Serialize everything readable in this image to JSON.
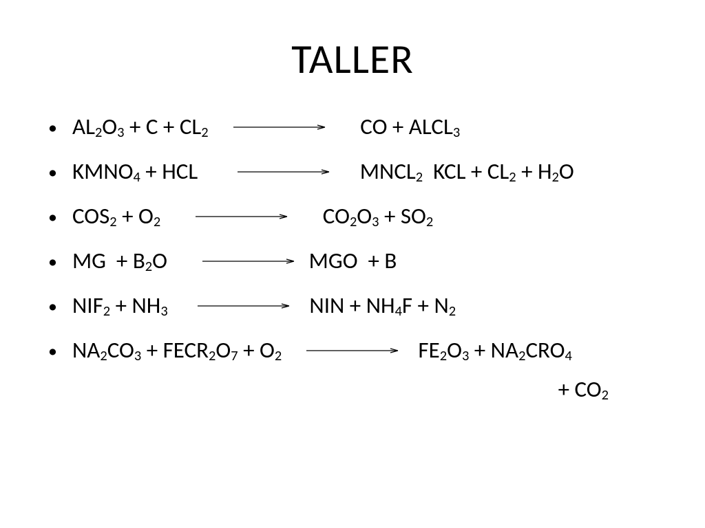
{
  "title": "TALLER",
  "arrow_style": {
    "stroke": "#000000",
    "stroke_width": 1.2,
    "head_len": 11,
    "head_w": 6
  },
  "equations": [
    {
      "lhs_segments": [
        {
          "t": "A",
          "s": false
        },
        {
          "t": "L",
          "s": false
        },
        {
          "t": "2",
          "s": true
        },
        {
          "t": "O",
          "s": false
        },
        {
          "t": "3",
          "s": true
        },
        {
          "t": " + C + C",
          "s": false
        },
        {
          "t": "L",
          "s": false
        },
        {
          "t": "2",
          "s": true
        },
        {
          "t": "    ",
          "s": false
        }
      ],
      "arrow_len": 134,
      "rhs_segments": [
        {
          "t": "      CO + A",
          "s": false
        },
        {
          "t": "L",
          "s": false
        },
        {
          "t": "C",
          "s": false
        },
        {
          "t": "L",
          "s": false
        },
        {
          "t": "3",
          "s": true
        }
      ]
    },
    {
      "lhs_segments": [
        {
          "t": "KM",
          "s": false
        },
        {
          "t": "N",
          "s": false
        },
        {
          "t": "O",
          "s": false
        },
        {
          "t": "4",
          "s": true
        },
        {
          "t": " + HC",
          "s": false
        },
        {
          "t": "L",
          "s": false
        },
        {
          "t": "       ",
          "s": false
        }
      ],
      "arrow_len": 134,
      "rhs_segments": [
        {
          "t": "     M",
          "s": false
        },
        {
          "t": "N",
          "s": false
        },
        {
          "t": "C",
          "s": false
        },
        {
          "t": "L",
          "s": false
        },
        {
          "t": "2",
          "s": true
        },
        {
          "t": "  KC",
          "s": false
        },
        {
          "t": "L",
          "s": false
        },
        {
          "t": " + C",
          "s": false
        },
        {
          "t": "L",
          "s": false
        },
        {
          "t": "2",
          "s": true
        },
        {
          "t": " + H",
          "s": false
        },
        {
          "t": "2",
          "s": true
        },
        {
          "t": "O",
          "s": false
        }
      ]
    },
    {
      "lhs_segments": [
        {
          "t": "C",
          "s": false
        },
        {
          "t": "O",
          "s": false
        },
        {
          "t": "S",
          "s": false
        },
        {
          "t": "2",
          "s": true
        },
        {
          "t": " + O",
          "s": false
        },
        {
          "t": "2",
          "s": true
        },
        {
          "t": "      ",
          "s": false
        }
      ],
      "arrow_len": 134,
      "rhs_segments": [
        {
          "t": "      C",
          "s": false
        },
        {
          "t": "O",
          "s": false
        },
        {
          "t": "2",
          "s": true
        },
        {
          "t": "O",
          "s": false
        },
        {
          "t": "3",
          "s": true
        },
        {
          "t": " + SO",
          "s": false
        },
        {
          "t": "2",
          "s": true
        }
      ]
    },
    {
      "lhs_segments": [
        {
          "t": "M",
          "s": false
        },
        {
          "t": "G",
          "s": false
        },
        {
          "t": "  + B",
          "s": false
        },
        {
          "t": "2",
          "s": true
        },
        {
          "t": "O      ",
          "s": false
        }
      ],
      "arrow_len": 134,
      "rhs_segments": [
        {
          "t": "  M",
          "s": false
        },
        {
          "t": "G",
          "s": false
        },
        {
          "t": "O  + B",
          "s": false
        }
      ]
    },
    {
      "lhs_segments": [
        {
          "t": "N",
          "s": false
        },
        {
          "t": "I",
          "s": false
        },
        {
          "t": "F",
          "s": false
        },
        {
          "t": "2",
          "s": true
        },
        {
          "t": " + NH",
          "s": false
        },
        {
          "t": "3",
          "s": true
        },
        {
          "t": "     ",
          "s": false
        }
      ],
      "arrow_len": 134,
      "rhs_segments": [
        {
          "t": "   N",
          "s": false
        },
        {
          "t": "I",
          "s": false
        },
        {
          "t": "N + NH",
          "s": false
        },
        {
          "t": "4",
          "s": true
        },
        {
          "t": "F + N",
          "s": false
        },
        {
          "t": "2",
          "s": true
        }
      ]
    },
    {
      "lhs_segments": [
        {
          "t": "N",
          "s": false
        },
        {
          "t": "A",
          "s": false
        },
        {
          "t": "2",
          "s": true
        },
        {
          "t": "CO",
          "s": false
        },
        {
          "t": "3",
          "s": true
        },
        {
          "t": " + F",
          "s": false
        },
        {
          "t": "E",
          "s": false
        },
        {
          "t": "C",
          "s": false
        },
        {
          "t": "R",
          "s": false
        },
        {
          "t": "2",
          "s": true
        },
        {
          "t": "O",
          "s": false
        },
        {
          "t": "7",
          "s": true
        },
        {
          "t": " + O",
          "s": false
        },
        {
          "t": "2",
          "s": true
        },
        {
          "t": "    ",
          "s": false
        }
      ],
      "arrow_len": 134,
      "rhs_segments": [
        {
          "t": "   F",
          "s": false
        },
        {
          "t": "E",
          "s": false
        },
        {
          "t": "2",
          "s": true
        },
        {
          "t": "O",
          "s": false
        },
        {
          "t": "3",
          "s": true
        },
        {
          "t": " + N",
          "s": false
        },
        {
          "t": "A",
          "s": false
        },
        {
          "t": "2",
          "s": true
        },
        {
          "t": "C",
          "s": false
        },
        {
          "t": "R",
          "s": false
        },
        {
          "t": "O",
          "s": false
        },
        {
          "t": "4",
          "s": true
        }
      ],
      "continuation_segments": [
        {
          "t": "+ CO",
          "s": false
        },
        {
          "t": "2",
          "s": true
        }
      ]
    }
  ]
}
